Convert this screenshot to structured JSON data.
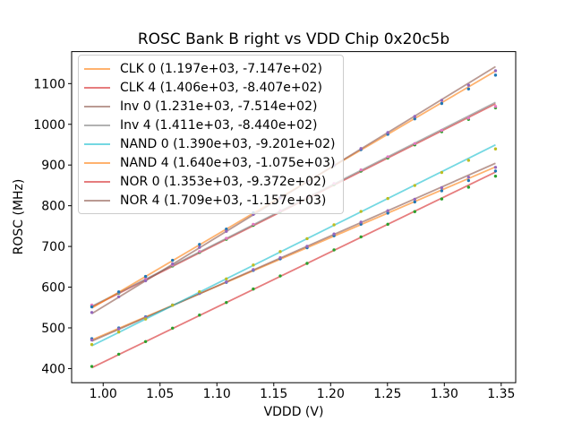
{
  "figure": {
    "title": "ROSC Bank B right vs VDD Chip 0x20c5b",
    "xlabel": "VDDD (V)",
    "ylabel": "ROSC (MHz)",
    "background_color": "#ffffff",
    "text_color": "#000000",
    "legend_border_color": "#cccccc"
  },
  "chart_data": {
    "type": "scatter",
    "title": "ROSC Bank B right vs VDD Chip 0x20c5b",
    "xlabel": "VDDD (V)",
    "ylabel": "ROSC (MHz)",
    "grid": false,
    "legend_position": "upper-left",
    "xlim": [
      0.97225,
      1.36275
    ],
    "ylim": [
      365.3,
      1178.6
    ],
    "xticks": [
      1.0,
      1.05,
      1.1,
      1.15,
      1.2,
      1.25,
      1.3,
      1.35
    ],
    "xtick_labels": [
      "1.00",
      "1.05",
      "1.10",
      "1.15",
      "1.20",
      "1.25",
      "1.30",
      "1.35"
    ],
    "yticks": [
      400,
      500,
      600,
      700,
      800,
      900,
      1000,
      1100
    ],
    "ytick_labels": [
      "400",
      "500",
      "600",
      "700",
      "800",
      "900",
      "1000",
      "1100"
    ],
    "x": [
      0.99,
      1.0137,
      1.0373,
      1.061,
      1.0847,
      1.1083,
      1.132,
      1.1557,
      1.1793,
      1.203,
      1.2267,
      1.2503,
      1.274,
      1.2977,
      1.3213,
      1.345
    ],
    "series": [
      {
        "name": "CLK 0",
        "label": "CLK 0 (1.197e+03, -7.147e+02)",
        "fit_slope": 1197,
        "fit_intercept": -714.7,
        "point_color": "#1f77b4",
        "line_color": "rgba(255,127,14,0.6)",
        "y": [
          473.3,
          499.7,
          527.0,
          556.3,
          584.7,
          611.9,
          641.3,
          669.7,
          696.9,
          726.3,
          754.7,
          781.9,
          809.3,
          836.7,
          861.9,
          885.3
        ]
      },
      {
        "name": "CLK 4",
        "label": "CLK 4 (1.406e+03, -8.407e+02)",
        "fit_slope": 1406,
        "fit_intercept": -840.7,
        "point_color": "#2ca02c",
        "line_color": "rgba(214,39,40,0.6)",
        "y": [
          554.2,
          585.6,
          617.7,
          652.1,
          685.4,
          717.6,
          751.9,
          785.2,
          817.4,
          851.7,
          885.0,
          917.2,
          949.5,
          981.9,
          1012.0,
          1040.4
        ]
      },
      {
        "name": "Inv 0",
        "label": "Inv 0 (1.231e+03, -7.514e+02)",
        "fit_slope": 1231,
        "fit_intercept": -751.4,
        "point_color": "#9467bd",
        "line_color": "rgba(140,86,75,0.6)",
        "y": [
          470.3,
          497.5,
          525.5,
          555.7,
          584.9,
          612.9,
          643.1,
          672.3,
          700.3,
          730.5,
          759.7,
          787.7,
          815.9,
          844.1,
          870.1,
          894.3
        ]
      },
      {
        "name": "Inv 4",
        "label": "Inv 4 (1.411e+03, -8.440e+02)",
        "fit_slope": 1411,
        "fit_intercept": -844.0,
        "point_color": "#e377c2",
        "line_color": "rgba(127,127,127,0.6)",
        "y": [
          555.9,
          587.3,
          619.6,
          654.1,
          687.5,
          719.8,
          754.3,
          787.7,
          820.0,
          854.4,
          887.9,
          920.2,
          952.6,
          985.1,
          1015.4,
          1043.8
        ]
      },
      {
        "name": "NAND 0",
        "label": "NAND 0 (1.390e+03, -9.201e+02)",
        "fit_slope": 1390,
        "fit_intercept": -920.1,
        "point_color": "#bcbd22",
        "line_color": "rgba(23,190,207,0.6)",
        "y": [
          459.0,
          489.9,
          521.7,
          555.7,
          588.6,
          620.4,
          654.4,
          687.3,
          719.1,
          753.1,
          786.0,
          817.8,
          849.8,
          881.7,
          911.5,
          939.5
        ]
      },
      {
        "name": "NAND 4",
        "label": "NAND 4 (1.640e+03, -1.075e+03)",
        "fit_slope": 1640,
        "fit_intercept": -1075,
        "point_color": "#1f77b4",
        "line_color": "rgba(255,127,14,0.6)",
        "y": [
          551.6,
          588.5,
          626.2,
          666.0,
          704.9,
          742.6,
          782.5,
          821.3,
          859.1,
          898.9,
          937.8,
          975.5,
          1013.4,
          1051.2,
          1086.9,
          1120.8
        ]
      },
      {
        "name": "NOR 0",
        "label": "NOR 0 (1.353e+03, -9.372e+02)",
        "fit_slope": 1353,
        "fit_intercept": -937.2,
        "point_color": "#2ca02c",
        "line_color": "rgba(214,39,40,0.6)",
        "y": [
          405.3,
          435.3,
          466.3,
          499.3,
          531.4,
          562.3,
          595.4,
          627.5,
          658.4,
          691.5,
          723.5,
          754.5,
          785.5,
          816.6,
          845.5,
          872.6
        ]
      },
      {
        "name": "NOR 4",
        "label": "NOR 4 (1.709e+03, -1.157e+03)",
        "fit_slope": 1709,
        "fit_intercept": -1157,
        "point_color": "#9467bd",
        "line_color": "rgba(140,86,75,0.6)",
        "y": [
          537.9,
          576.4,
          615.7,
          657.2,
          697.8,
          737.1,
          778.6,
          819.1,
          858.4,
          899.9,
          940.4,
          979.8,
          1019.3,
          1058.8,
          1096.1,
          1131.6
        ]
      }
    ]
  }
}
